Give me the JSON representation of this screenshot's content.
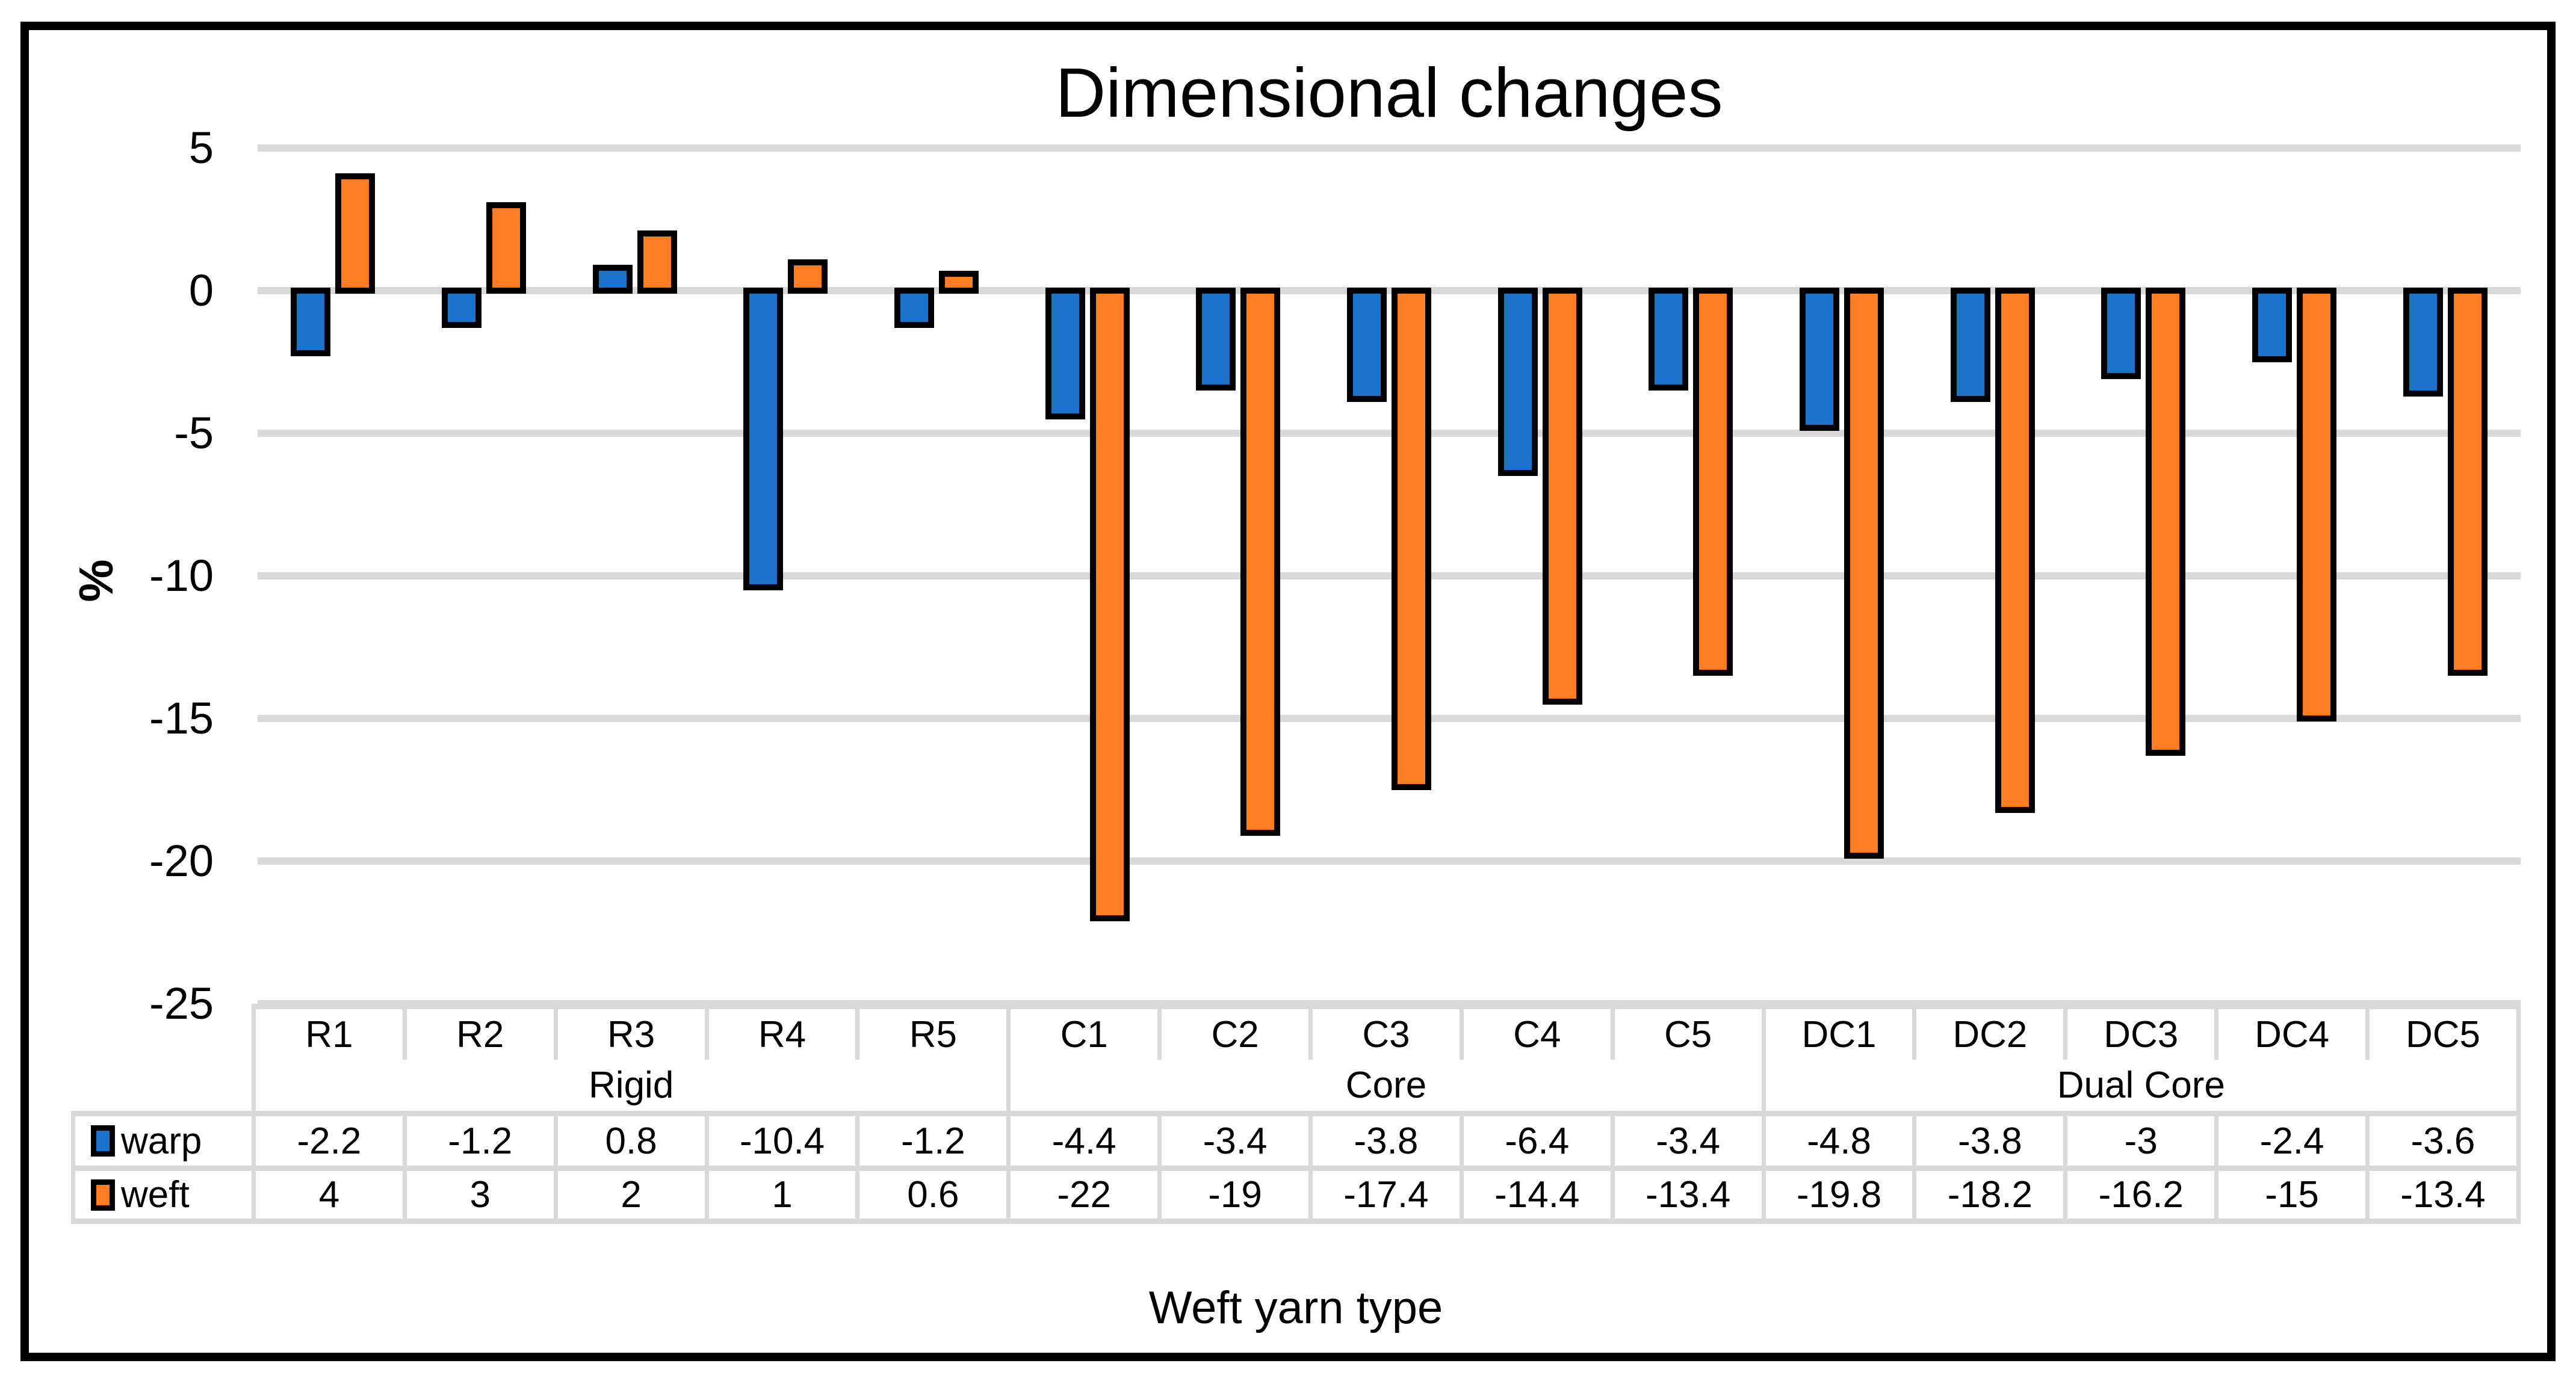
{
  "title": "Dimensional changes",
  "y_axis": {
    "label": "%",
    "ticks": [
      "5",
      "0",
      "-5",
      "-10",
      "-15",
      "-20",
      "-25"
    ]
  },
  "x_axis": {
    "title": "Weft yarn type"
  },
  "colors": {
    "warp": "#1A73C8",
    "weft": "#FC7D23",
    "bar_border": "#000000",
    "grid": "#D9D9D9",
    "text": "#000000",
    "background": "#FFFFFF"
  },
  "chart_data": {
    "type": "bar",
    "title": "Dimensional changes",
    "xlabel": "Weft yarn type",
    "ylabel": "%",
    "ylim": [
      -25,
      5
    ],
    "ytick_step": 5,
    "grid": true,
    "legend_position": "data-table-left",
    "categories": [
      "R1",
      "R2",
      "R3",
      "R4",
      "R5",
      "C1",
      "C2",
      "C3",
      "C4",
      "C5",
      "DC1",
      "DC2",
      "DC3",
      "DC4",
      "DC5"
    ],
    "category_groups": [
      {
        "label": "Rigid",
        "span": 5
      },
      {
        "label": "Core",
        "span": 5
      },
      {
        "label": "Dual Core",
        "span": 5
      }
    ],
    "series": [
      {
        "name": "warp",
        "color": "#1A73C8",
        "values": [
          -2.2,
          -1.2,
          0.8,
          -10.4,
          -1.2,
          -4.4,
          -3.4,
          -3.8,
          -6.4,
          -3.4,
          -4.8,
          -3.8,
          -3,
          -2.4,
          -3.6
        ]
      },
      {
        "name": "weft",
        "color": "#FC7D23",
        "values": [
          4,
          3,
          2,
          1,
          0.6,
          -22,
          -19,
          -17.4,
          -14.4,
          -13.4,
          -19.8,
          -18.2,
          -16.2,
          -15,
          -13.4
        ]
      }
    ]
  }
}
